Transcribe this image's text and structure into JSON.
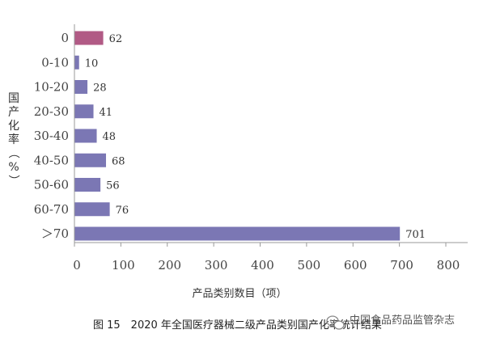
{
  "chart_data": {
    "type": "bar",
    "orientation": "horizontal",
    "categories": [
      "0",
      "0-10",
      "10-20",
      "20-30",
      "30-40",
      "40-50",
      "50-60",
      "60-70",
      "＞70"
    ],
    "values": [
      62,
      10,
      28,
      41,
      48,
      68,
      56,
      76,
      701
    ],
    "bar_colors": [
      "#b15a85",
      "#7b77b4",
      "#7b77b4",
      "#7b77b4",
      "#7b77b4",
      "#7b77b4",
      "#7b77b4",
      "#7b77b4",
      "#7b77b4"
    ],
    "xlabel": "产品类别数目（项）",
    "ylabel": "国产化率（%）",
    "xlim": [
      0,
      800
    ],
    "xticks": [
      0,
      100,
      200,
      300,
      400,
      500,
      600,
      700,
      800
    ],
    "grid": false
  },
  "caption": "图 15　2020 年全国医疗器械二级产品类别国产化率统计结果",
  "watermark": "中国食品药品监管杂志"
}
